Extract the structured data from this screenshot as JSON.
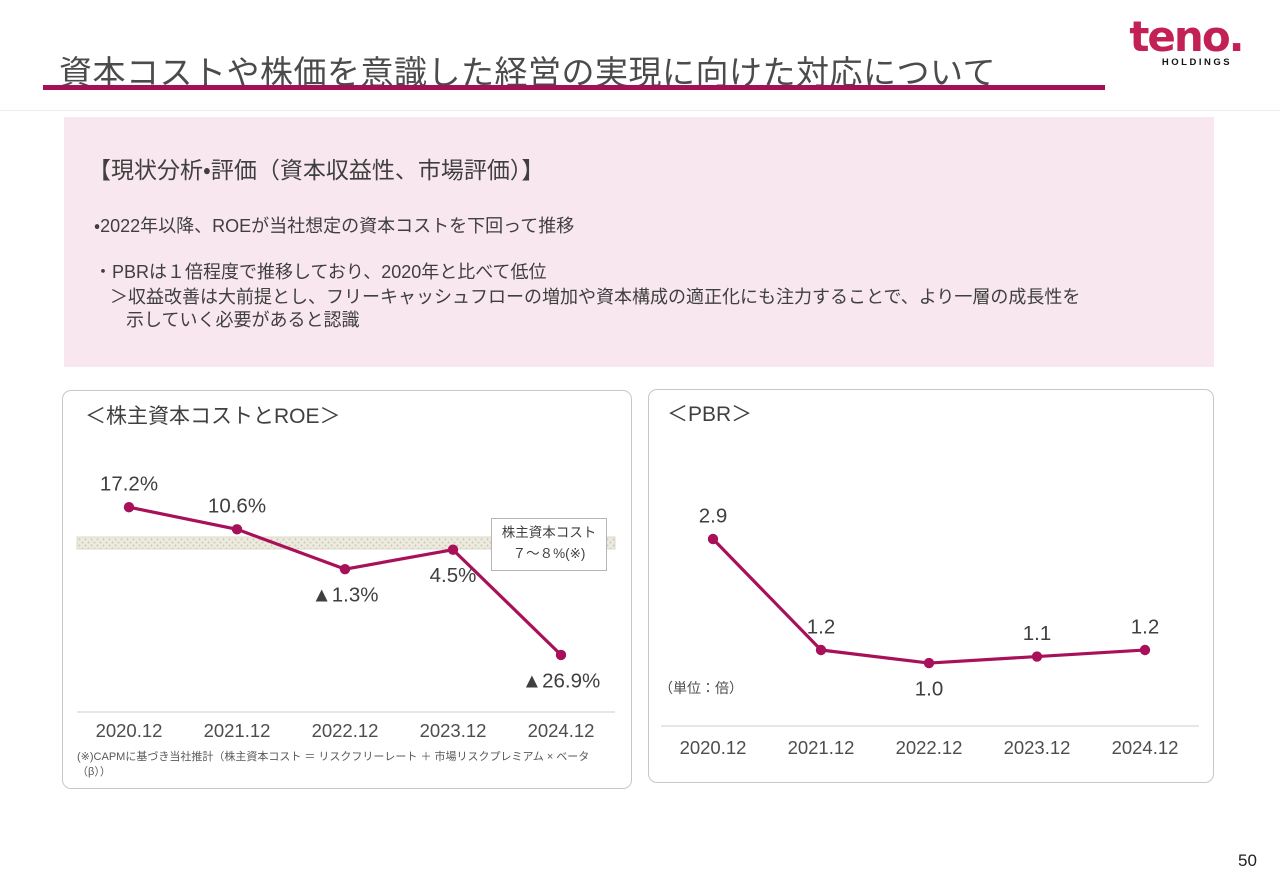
{
  "page": {
    "title": "資本コストや株価を意識した経営の実現に向けた対応について",
    "page_number": "50"
  },
  "logo": {
    "brand": "teno.",
    "sub": "HOLDINGS"
  },
  "analysis_box": {
    "heading": "【現状分析・評価（資本収益性、市場評価）】",
    "bullet1": "・2022年以降、ROEが当社想定の資本コストを下回って推移",
    "bullet2_line1": "・PBRは１倍程度で推移しており、2020年と比べて低位",
    "bullet2_line2": "＞収益改善は大前提とし、フリーキャッシュフローの増加や資本構成の適正化にも注力することで、より一層の成長性を",
    "bullet2_line3": "示していく必要があると認識"
  },
  "chart_data": [
    {
      "type": "line",
      "title": "＜株主資本コストとROE＞",
      "categories": [
        "2020.12",
        "2021.12",
        "2022.12",
        "2023.12",
        "2024.12"
      ],
      "series": [
        {
          "name": "ROE",
          "values": [
            17.2,
            10.6,
            -1.3,
            4.5,
            -26.9
          ]
        }
      ],
      "point_labels": [
        "17.2%",
        "10.6%",
        "▲1.3%",
        "4.5%",
        "▲26.9%"
      ],
      "label_positions": [
        "above",
        "above",
        "below",
        "below",
        "below"
      ],
      "band": {
        "range": [
          7,
          8
        ],
        "label_line1": "株主資本コスト",
        "label_line2": "７～８%(※)"
      },
      "footnote_line1": "(※)CAPMに基づき当社推計（株主資本コスト ＝ リスクフリーレート ＋ 市場リスクプレミアム × ベータ",
      "footnote_line2": "（β））",
      "line_color": "#a81159",
      "grid": "off",
      "legend": "none"
    },
    {
      "type": "line",
      "title": "＜PBR＞",
      "categories": [
        "2020.12",
        "2021.12",
        "2022.12",
        "2023.12",
        "2024.12"
      ],
      "series": [
        {
          "name": "PBR",
          "values": [
            2.9,
            1.2,
            1.0,
            1.1,
            1.2
          ]
        }
      ],
      "point_labels": [
        "2.9",
        "1.2",
        "1.0",
        "1.1",
        "1.2"
      ],
      "label_positions": [
        "above",
        "above",
        "below",
        "above",
        "above"
      ],
      "unit_note": "（単位：倍）",
      "line_color": "#a81159",
      "grid": "off",
      "legend": "none"
    }
  ]
}
